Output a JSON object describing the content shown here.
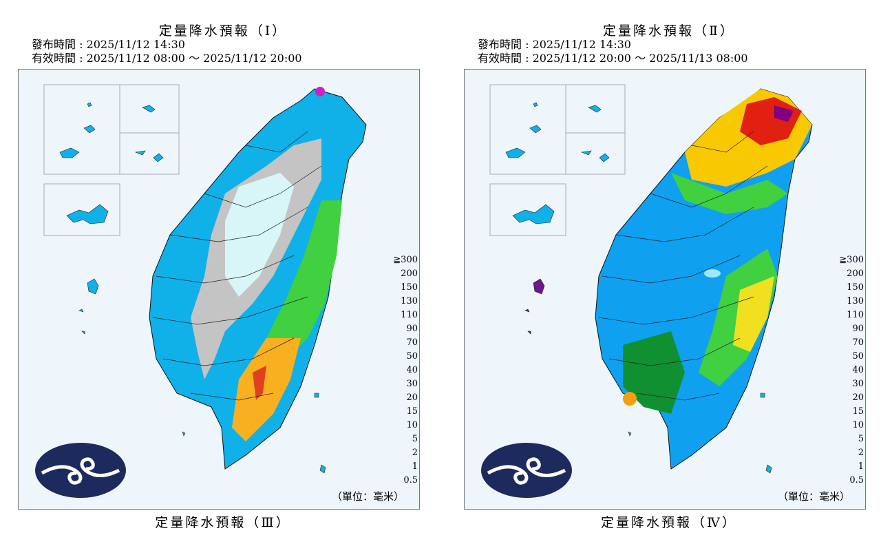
{
  "legend_colors": [
    "#c0c0c0",
    "#a0f8f8",
    "#10c8f0",
    "#10a0f0",
    "#1060e0",
    "#109030",
    "#40d040",
    "#f0f020",
    "#f8c800",
    "#f89c10",
    "#f81010",
    "#d80000",
    "#b00000",
    "#800000",
    "#a01090",
    "#d020c0",
    "#f800f0",
    "#f8c0f8"
  ],
  "legend_labels": [
    "0.5",
    "1",
    "2",
    "5",
    "10",
    "15",
    "20",
    "30",
    "40",
    "50",
    "70",
    "90",
    "110",
    "130",
    "150",
    "200",
    "≧300"
  ],
  "unit_label": "（單位：毫米）",
  "panels": [
    {
      "title": "定量降水預報（Ⅰ）",
      "issue_time": "發布時間 : 2025/11/12 14:30",
      "valid_time": "有效時間 : 2025/11/12 08:00 ～ 2025/11/12 20:00",
      "dominant_colors": [
        "#10c8f0",
        "#c0c0c0",
        "#40d040",
        "#f89c10"
      ]
    },
    {
      "title": "定量降水預報（Ⅱ）",
      "issue_time": "發布時間 : 2025/11/12 14:30",
      "valid_time": "有效時間 : 2025/11/12 20:00 ～ 2025/11/13 08:00",
      "dominant_colors": [
        "#10a0f0",
        "#40d040",
        "#f8c800",
        "#f81010"
      ]
    }
  ],
  "bottom_titles": [
    "定量降水預報（Ⅲ）",
    "定量降水預報（Ⅳ）"
  ]
}
